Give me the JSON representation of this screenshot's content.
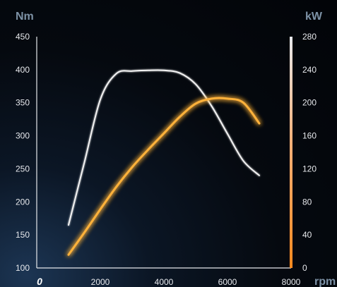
{
  "chart_data": {
    "type": "line",
    "x_unit": "rpm",
    "x_ticks": [
      "0",
      "2000",
      "4000",
      "6000",
      "8000"
    ],
    "xlim": [
      0,
      8000
    ],
    "left_axis": {
      "unit": "Nm",
      "ticks": [
        "450",
        "400",
        "350",
        "300",
        "250",
        "200",
        "150",
        "100"
      ],
      "ylim": [
        100,
        450
      ]
    },
    "right_axis": {
      "unit": "kW",
      "ticks": [
        "280",
        "240",
        "200",
        "160",
        "120",
        "80",
        "40",
        "0"
      ],
      "ylim": [
        0,
        280
      ]
    },
    "series": [
      {
        "axis": "left",
        "color": "#f2f2f2",
        "x": [
          1000,
          1500,
          2000,
          2500,
          3000,
          3500,
          4000,
          4500,
          5000,
          5500,
          6000,
          6500,
          7000
        ],
        "y": [
          165,
          260,
          355,
          394,
          398,
          399,
          399,
          395,
          378,
          345,
          303,
          262,
          240
        ]
      },
      {
        "axis": "right",
        "color": "#ffb23a",
        "x": [
          1000,
          1500,
          2000,
          2500,
          3000,
          3500,
          4000,
          4500,
          5000,
          5500,
          6000,
          6500,
          7000
        ],
        "y": [
          16,
          43,
          71,
          98,
          122,
          143,
          163,
          183,
          199,
          205,
          205,
          200,
          175
        ]
      }
    ]
  }
}
